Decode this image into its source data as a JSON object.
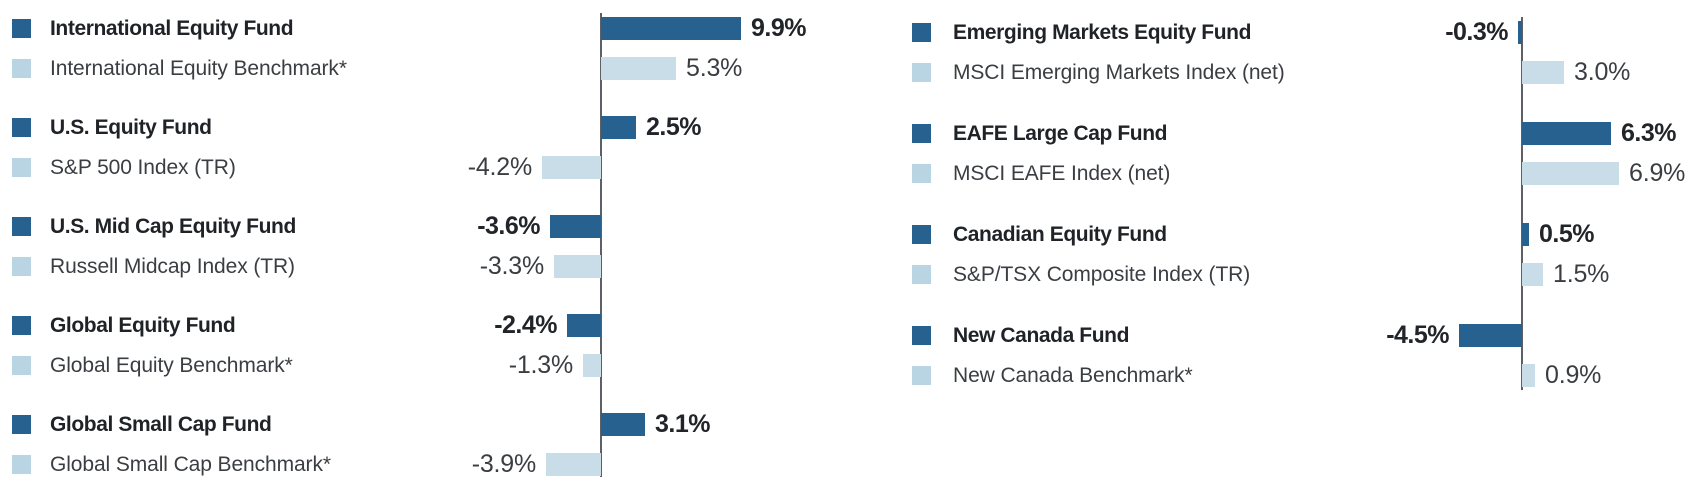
{
  "chart_data": [
    {
      "type": "bar",
      "orientation": "horizontal",
      "panel": "left",
      "unit": "percent",
      "value_format": "one-decimal-percent",
      "gridlines": false,
      "zero_baseline_line": true,
      "xlim": [
        -5,
        10.5
      ],
      "legend_style": "per-row-swatches",
      "series_roles": [
        "fund",
        "benchmark"
      ],
      "pairs": [
        {
          "fund_label": "International Equity Fund",
          "fund_value": 9.9,
          "benchmark_label": "International Equity Benchmark*",
          "benchmark_value": 5.3
        },
        {
          "fund_label": "U.S. Equity Fund",
          "fund_value": 2.5,
          "benchmark_label": "S&P 500 Index (TR)",
          "benchmark_value": -4.2
        },
        {
          "fund_label": "U.S. Mid Cap Equity Fund",
          "fund_value": -3.6,
          "benchmark_label": "Russell Midcap Index (TR)",
          "benchmark_value": -3.3
        },
        {
          "fund_label": "Global Equity Fund",
          "fund_value": -2.4,
          "benchmark_label": "Global Equity Benchmark*",
          "benchmark_value": -1.3
        },
        {
          "fund_label": "Global Small Cap Fund",
          "fund_value": 3.1,
          "benchmark_label": "Global Small Cap Benchmark*",
          "benchmark_value": -3.9
        }
      ]
    },
    {
      "type": "bar",
      "orientation": "horizontal",
      "panel": "right",
      "unit": "percent",
      "value_format": "one-decimal-percent",
      "gridlines": false,
      "zero_baseline_line": true,
      "xlim": [
        -5,
        7.5
      ],
      "legend_style": "per-row-swatches",
      "series_roles": [
        "fund",
        "benchmark"
      ],
      "pairs": [
        {
          "fund_label": "Emerging Markets Equity Fund",
          "fund_value": -0.3,
          "benchmark_label": "MSCI Emerging Markets Index (net)",
          "benchmark_value": 3.0
        },
        {
          "fund_label": "EAFE Large Cap Fund",
          "fund_value": 6.3,
          "benchmark_label": "MSCI EAFE Index (net)",
          "benchmark_value": 6.9
        },
        {
          "fund_label": "Canadian Equity Fund",
          "fund_value": 0.5,
          "benchmark_label": "S&P/TSX Composite Index (TR)",
          "benchmark_value": 1.5
        },
        {
          "fund_label": "New Canada Fund",
          "fund_value": -4.5,
          "benchmark_label": "New Canada Benchmark*",
          "benchmark_value": 0.9
        }
      ]
    }
  ],
  "styles": {
    "fund_bar_color": "#26618f",
    "benchmark_bar_color": "#c9dde8",
    "fund_swatch_color": "#26618f",
    "benchmark_swatch_color": "#b9d4e2",
    "axis_line_color": "#5d6064",
    "fund_text_color": "#1f2226",
    "benchmark_text_color": "#3a3e42",
    "background_color": "#ffffff"
  }
}
